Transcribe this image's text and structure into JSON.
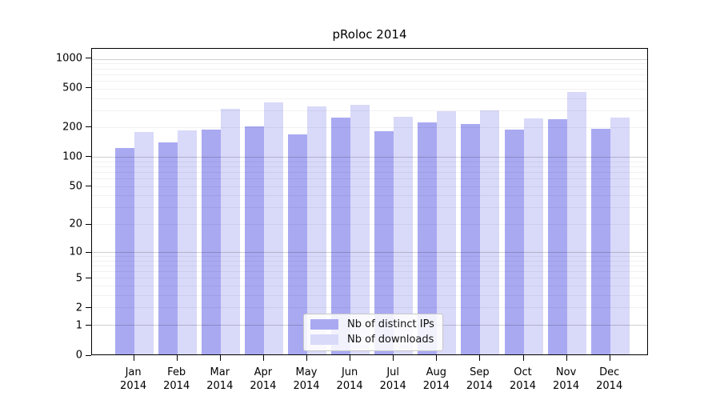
{
  "chart_data": {
    "type": "bar",
    "title": "pRoloc 2014",
    "categories": [
      "Jan 2014",
      "Feb 2014",
      "Mar 2014",
      "Apr 2014",
      "May 2014",
      "Jun 2014",
      "Jul 2014",
      "Aug 2014",
      "Sep 2014",
      "Oct 2014",
      "Nov 2014",
      "Dec 2014"
    ],
    "series": [
      {
        "name": "Nb of distinct IPs",
        "color": "#a9a9f2",
        "values": [
          121,
          137,
          186,
          199,
          165,
          245,
          179,
          220,
          210,
          186,
          237,
          190
        ]
      },
      {
        "name": "Nb of downloads",
        "color": "#d9d9f9",
        "values": [
          176,
          181,
          304,
          349,
          317,
          333,
          251,
          284,
          292,
          240,
          445,
          247
        ]
      }
    ],
    "xlabel": "",
    "ylabel": "",
    "y_scale": "log1p",
    "y_ticks": [
      0,
      1,
      2,
      5,
      10,
      20,
      50,
      100,
      200,
      500,
      1000
    ],
    "ylim": [
      0,
      1340
    ],
    "grid": true,
    "legend_position": "inside-bottom-center"
  },
  "colors": {
    "bar_dark": "#a9a9f2",
    "bar_light": "#d9d9f9",
    "axis": "#000000",
    "grid_major": "#cfcfcf",
    "grid_minor": "#efefef",
    "legend_border": "#c8c8c8",
    "background": "#ffffff"
  }
}
